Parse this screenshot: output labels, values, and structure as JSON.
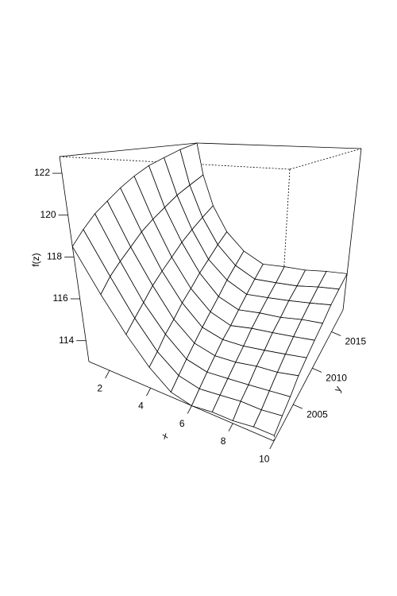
{
  "chart_data": {
    "type": "surface",
    "xlabel": "x",
    "ylabel": "y",
    "zlabel": "f(z)",
    "x": [
      1,
      2,
      3,
      4,
      5,
      6,
      7,
      8,
      9,
      10
    ],
    "y": [
      2000,
      2002,
      2004,
      2006,
      2008,
      2010,
      2012,
      2014,
      2016,
      2018
    ],
    "z": [
      [
        118.5,
        116.5,
        115.0,
        113.9,
        113.2,
        113.0,
        113.1,
        113.1,
        113.2,
        113.2
      ],
      [
        119.0,
        116.9,
        115.2,
        114.0,
        113.3,
        113.1,
        113.2,
        113.3,
        113.3,
        113.4
      ],
      [
        119.5,
        117.2,
        115.4,
        114.2,
        113.4,
        113.2,
        113.3,
        113.4,
        113.5,
        113.6
      ],
      [
        119.9,
        117.5,
        115.7,
        114.3,
        113.5,
        113.3,
        113.4,
        113.6,
        113.7,
        113.9
      ],
      [
        120.4,
        117.9,
        115.9,
        114.5,
        113.6,
        113.4,
        113.5,
        113.7,
        113.9,
        114.1
      ],
      [
        120.9,
        118.2,
        116.1,
        114.6,
        113.7,
        113.4,
        113.7,
        113.9,
        114.1,
        114.3
      ],
      [
        121.4,
        118.5,
        116.4,
        114.8,
        113.8,
        113.5,
        113.8,
        114.0,
        114.3,
        114.5
      ],
      [
        121.8,
        118.9,
        116.6,
        114.9,
        114.0,
        113.6,
        113.9,
        114.2,
        114.5,
        114.8
      ],
      [
        122.3,
        119.2,
        116.8,
        115.1,
        114.1,
        113.7,
        114.0,
        114.3,
        114.7,
        115.0
      ],
      [
        122.8,
        119.6,
        117.0,
        115.2,
        114.2,
        113.8,
        114.2,
        114.5,
        114.9,
        115.2
      ]
    ],
    "xlim": [
      1,
      10
    ],
    "ylim": [
      2000,
      2018
    ],
    "zlim": [
      113,
      122.8
    ],
    "xticks": [
      2,
      4,
      6,
      8,
      10
    ],
    "yticks": [
      2005,
      2010,
      2015
    ],
    "zticks": [
      114,
      116,
      118,
      120,
      122
    ],
    "color": "#ffffff"
  }
}
